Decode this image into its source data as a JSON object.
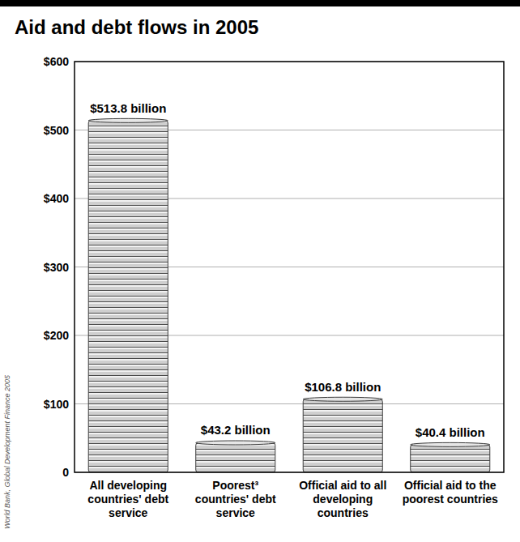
{
  "chart_data": {
    "type": "bar",
    "title": "Aid and debt flows in 2005",
    "categories": [
      "All developing countries' debt service",
      "Poorest³ countries' debt service",
      "Official aid to all developing countries",
      "Official aid to the poorest countries"
    ],
    "values": [
      513.8,
      43.2,
      106.8,
      40.4
    ],
    "value_labels": [
      "$513.8 billion",
      "$43.2 billion",
      "$106.8 billion",
      "$40.4 billion"
    ],
    "data_labels": true,
    "color": "#cfcfcf",
    "ylim": [
      0,
      600
    ],
    "yticks": [
      0,
      {
        "value": 100,
        "label": "$100"
      },
      {
        "value": 200,
        "label": "$200"
      },
      {
        "value": 300,
        "label": "$300"
      },
      {
        "value": 400,
        "label": "$400"
      },
      {
        "value": 500,
        "label": "$500"
      },
      {
        "value": 600,
        "label": "$600"
      }
    ],
    "grid": true,
    "annotations": [
      "World Bank, Global Development Finance 2005"
    ]
  }
}
